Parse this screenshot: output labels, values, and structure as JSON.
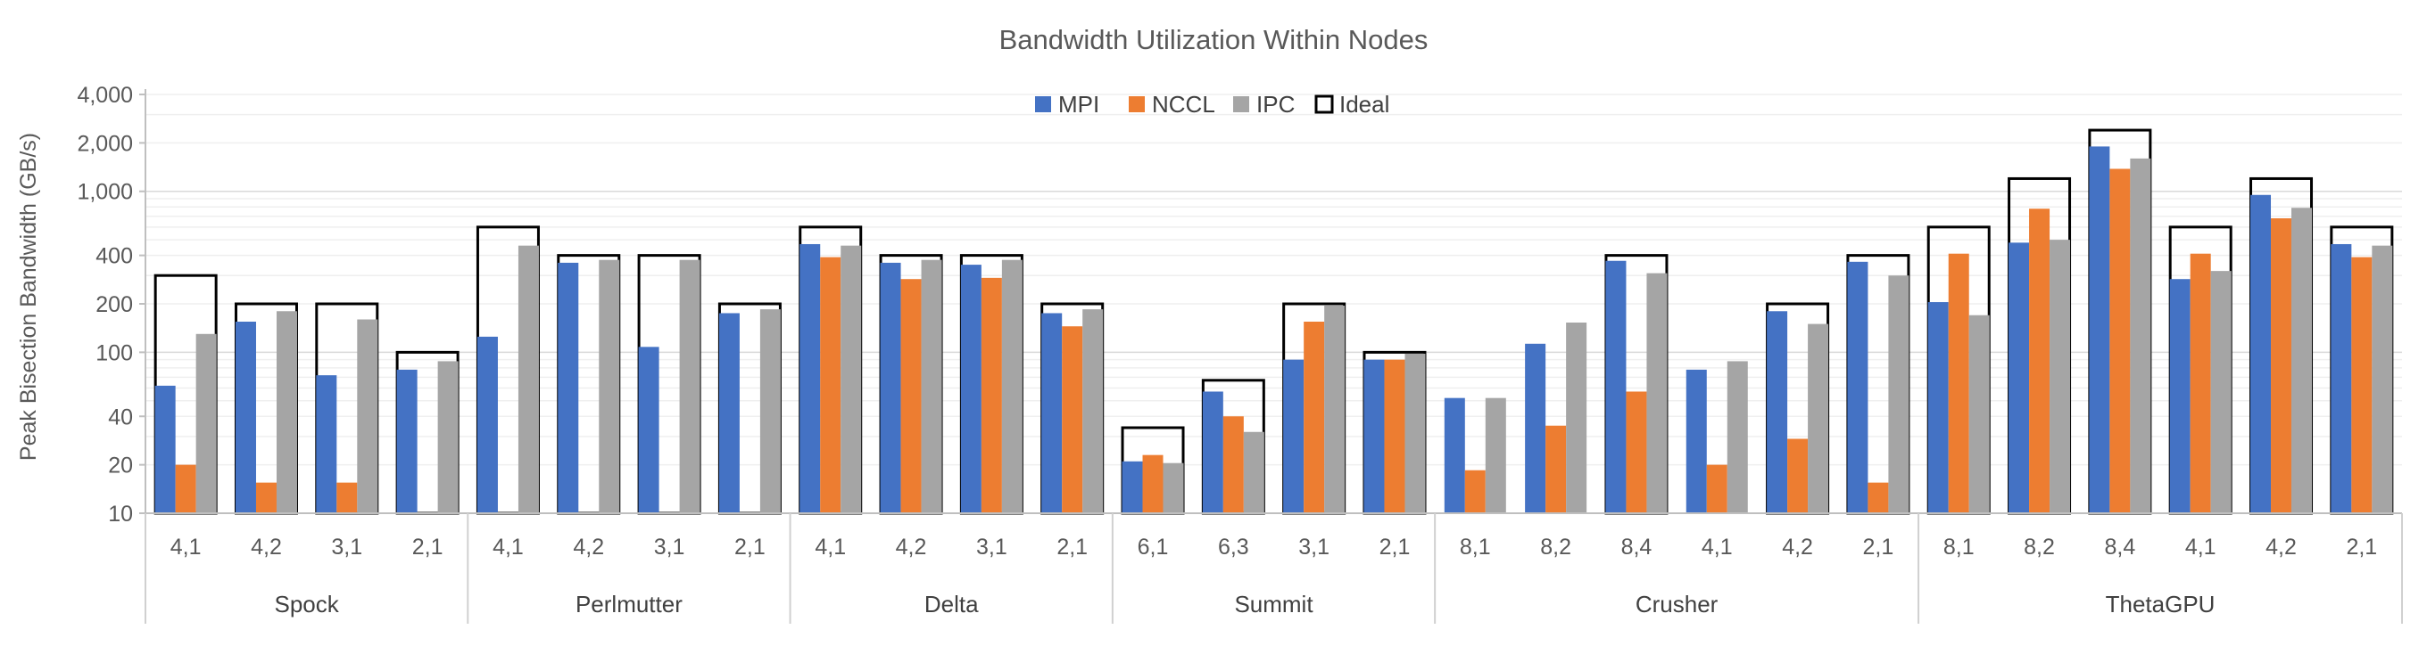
{
  "chart_data": {
    "type": "bar",
    "title": "Bandwidth Utilization Within Nodes",
    "xlabel": "",
    "ylabel": "Peak Bisection Bandwidth (GB/s)",
    "y_scale": "log",
    "ylim": [
      10,
      4000
    ],
    "y_ticks": [
      10,
      20,
      40,
      100,
      200,
      400,
      1000,
      2000,
      4000
    ],
    "y_tick_labels": [
      "10",
      "20",
      "40",
      "100",
      "200",
      "400",
      "1,000",
      "2,000",
      "4,000"
    ],
    "grid": true,
    "legend_position": "top-center",
    "colors": {
      "MPI": "#4472C4",
      "NCCL": "#ED7D31",
      "IPC": "#A5A5A5",
      "Ideal": "#000000"
    },
    "series_names": [
      "MPI",
      "NCCL",
      "IPC",
      "Ideal"
    ],
    "groups": [
      {
        "name": "Spock",
        "categories": [
          "4,1",
          "4,2",
          "3,1",
          "2,1"
        ],
        "series": [
          {
            "name": "MPI",
            "values": [
              62,
              155,
              72,
              78
            ]
          },
          {
            "name": "NCCL",
            "values": [
              20,
              15.5,
              15.5,
              null
            ]
          },
          {
            "name": "IPC",
            "values": [
              130,
              180,
              160,
              88
            ]
          },
          {
            "name": "Ideal",
            "values": [
              300,
              200,
              200,
              100
            ]
          }
        ]
      },
      {
        "name": "Perlmutter",
        "categories": [
          "4,1",
          "4,2",
          "3,1",
          "2,1"
        ],
        "series": [
          {
            "name": "MPI",
            "values": [
              125,
              360,
              108,
              175
            ]
          },
          {
            "name": "NCCL",
            "values": [
              null,
              null,
              null,
              null
            ]
          },
          {
            "name": "IPC",
            "values": [
              460,
              375,
              375,
              185
            ]
          },
          {
            "name": "Ideal",
            "values": [
              600,
              400,
              400,
              200
            ]
          }
        ]
      },
      {
        "name": "Delta",
        "categories": [
          "4,1",
          "4,2",
          "3,1",
          "2,1"
        ],
        "series": [
          {
            "name": "MPI",
            "values": [
              470,
              360,
              350,
              175
            ]
          },
          {
            "name": "NCCL",
            "values": [
              390,
              285,
              290,
              145
            ]
          },
          {
            "name": "IPC",
            "values": [
              460,
              375,
              375,
              185
            ]
          },
          {
            "name": "Ideal",
            "values": [
              600,
              400,
              400,
              200
            ]
          }
        ]
      },
      {
        "name": "Summit",
        "categories": [
          "6,1",
          "6,3",
          "3,1",
          "2,1"
        ],
        "series": [
          {
            "name": "MPI",
            "values": [
              21,
              57,
              90,
              90
            ]
          },
          {
            "name": "NCCL",
            "values": [
              23,
              40,
              155,
              90
            ]
          },
          {
            "name": "IPC",
            "values": [
              20.5,
              32,
              195,
              98
            ]
          },
          {
            "name": "Ideal",
            "values": [
              34,
              67,
              200,
              100
            ]
          }
        ]
      },
      {
        "name": "Crusher",
        "categories": [
          "8,1",
          "8,2",
          "8,4",
          "4,1",
          "4,2",
          "2,1"
        ],
        "series": [
          {
            "name": "MPI",
            "values": [
              52,
              113,
              370,
              78,
              180,
              365
            ]
          },
          {
            "name": "NCCL",
            "values": [
              18.5,
              35,
              57,
              20,
              29,
              15.5
            ]
          },
          {
            "name": "IPC",
            "values": [
              52,
              153,
              310,
              88,
              150,
              300
            ]
          },
          {
            "name": "Ideal",
            "values": [
              null,
              null,
              400,
              null,
              200,
              400
            ]
          }
        ]
      },
      {
        "name": "ThetaGPU",
        "categories": [
          "8,1",
          "8,2",
          "8,4",
          "4,1",
          "4,2",
          "2,1"
        ],
        "series": [
          {
            "name": "MPI",
            "values": [
              205,
              480,
              1900,
              285,
              950,
              470
            ]
          },
          {
            "name": "NCCL",
            "values": [
              410,
              780,
              1380,
              410,
              680,
              390
            ]
          },
          {
            "name": "IPC",
            "values": [
              170,
              500,
              1600,
              320,
              790,
              460
            ]
          },
          {
            "name": "Ideal",
            "values": [
              600,
              1200,
              2400,
              600,
              1200,
              600
            ]
          }
        ]
      }
    ]
  }
}
